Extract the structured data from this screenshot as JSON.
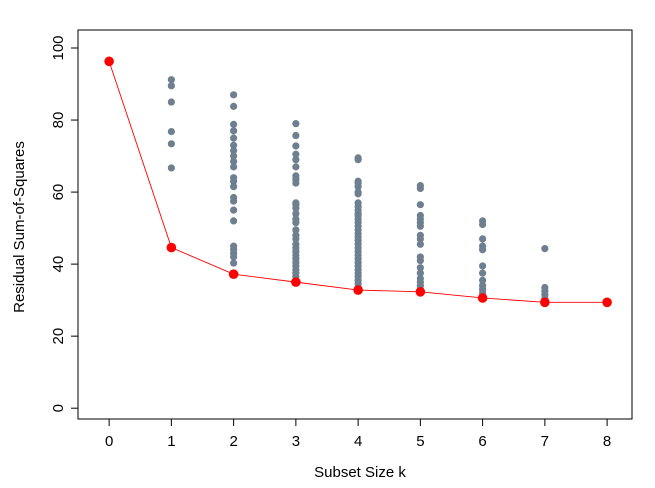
{
  "chart_data": {
    "type": "scatter",
    "title": "",
    "xlabel": "Subset Size k",
    "ylabel": "Residual Sum-of-Squares",
    "xlim": [
      -0.5,
      8.4
    ],
    "ylim": [
      -3,
      105
    ],
    "xticks": [
      0,
      1,
      2,
      3,
      4,
      5,
      6,
      7,
      8
    ],
    "yticks": [
      0,
      20,
      40,
      60,
      80,
      100
    ],
    "grid": false,
    "legend": "none",
    "colors": {
      "all_subsets": "#6e7f90",
      "best_subset": "#ff0000",
      "frame": "#000000"
    },
    "series": [
      {
        "role": "all_subsets",
        "points": [
          {
            "k": 1,
            "values": [
              91.2,
              89.5,
              85.0,
              76.8,
              73.4,
              66.7,
              44.5
            ]
          },
          {
            "k": 2,
            "values": [
              87.0,
              83.8,
              78.8,
              77.0,
              75.0,
              73.0,
              71.5,
              70.0,
              68.5,
              67.0,
              64.0,
              63.0,
              61.5,
              58.5,
              57.5,
              55.0,
              52.0,
              45.0,
              44.0,
              43.0,
              42.0,
              40.3,
              37.2
            ]
          },
          {
            "k": 3,
            "values": [
              79.0,
              75.7,
              72.8,
              70.5,
              69.0,
              67.0,
              64.5,
              63.5,
              62.5,
              57.0,
              56.5,
              55.5,
              54.0,
              52.5,
              51.5,
              49.5,
              48.0,
              47.0,
              45.5,
              44.5,
              43.5,
              42.5,
              41.5,
              40.5,
              39.5,
              38.5,
              37.5,
              36.5,
              35.0
            ]
          },
          {
            "k": 4,
            "values": [
              69.5,
              69.0,
              63.0,
              62.5,
              61.5,
              60.0,
              59.5,
              57.0,
              56.0,
              55.0,
              54.0,
              53.5,
              52.5,
              51.5,
              50.5,
              49.5,
              48.5,
              47.5,
              46.5,
              45.5,
              44.5,
              43.5,
              42.5,
              41.5,
              40.5,
              39.5,
              38.5,
              37.5,
              36.5,
              35.5,
              34.5,
              33.5,
              32.8
            ]
          },
          {
            "k": 5,
            "values": [
              61.8,
              61.0,
              56.5,
              53.5,
              52.5,
              51.5,
              50.5,
              48.0,
              47.0,
              45.5,
              42.0,
              41.0,
              39.0,
              37.5,
              36.0,
              35.0,
              34.0,
              33.0,
              32.3
            ]
          },
          {
            "k": 6,
            "values": [
              52.0,
              51.0,
              47.0,
              45.0,
              44.0,
              39.5,
              37.5,
              35.5,
              34.0,
              33.0,
              32.0,
              30.8
            ]
          },
          {
            "k": 7,
            "values": [
              44.3,
              33.5,
              32.5,
              31.5,
              30.5,
              29.5
            ]
          },
          {
            "k": 8,
            "values": [
              29.5
            ]
          }
        ]
      },
      {
        "role": "best_subset",
        "x": [
          0,
          1,
          2,
          3,
          4,
          5,
          6,
          7,
          8
        ],
        "y": [
          96.3,
          44.6,
          37.2,
          35.0,
          32.8,
          32.3,
          30.6,
          29.4,
          29.4
        ],
        "line": true
      }
    ]
  }
}
